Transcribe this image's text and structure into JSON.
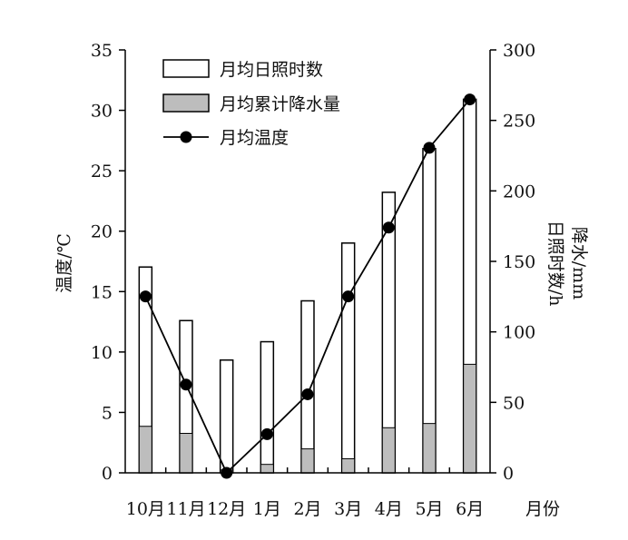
{
  "chart_data": {
    "type": "bar",
    "categories": [
      "10月",
      "11月",
      "12月",
      "1月",
      "2月",
      "3月",
      "4月",
      "5月",
      "6月"
    ],
    "xlabel": "月份",
    "y_left": {
      "label": "温度/℃",
      "range": [
        0,
        35
      ],
      "ticks": [
        0,
        5,
        10,
        15,
        20,
        25,
        30,
        35
      ]
    },
    "y_right": {
      "label_line1": "降水/mm",
      "label_line2": "日照时数/h",
      "range": [
        0,
        300
      ],
      "ticks": [
        0,
        50,
        100,
        150,
        200,
        250,
        300
      ]
    },
    "legend_position": "top-left",
    "series": [
      {
        "name": "月均日照时数",
        "kind": "bar",
        "axis": "right",
        "color": "#ffffff",
        "values": [
          146,
          108,
          80,
          93,
          122,
          163,
          199,
          230,
          265
        ]
      },
      {
        "name": "月均累计降水量",
        "kind": "bar",
        "axis": "right",
        "color": "#bdbdbd",
        "values": [
          33,
          28,
          2,
          6,
          17,
          10,
          32,
          35,
          77
        ]
      },
      {
        "name": "月均温度",
        "kind": "line",
        "axis": "left",
        "color": "#000000",
        "values": [
          14.6,
          7.3,
          0,
          3.2,
          6.5,
          14.6,
          20.3,
          26.9,
          30.9
        ]
      }
    ]
  }
}
